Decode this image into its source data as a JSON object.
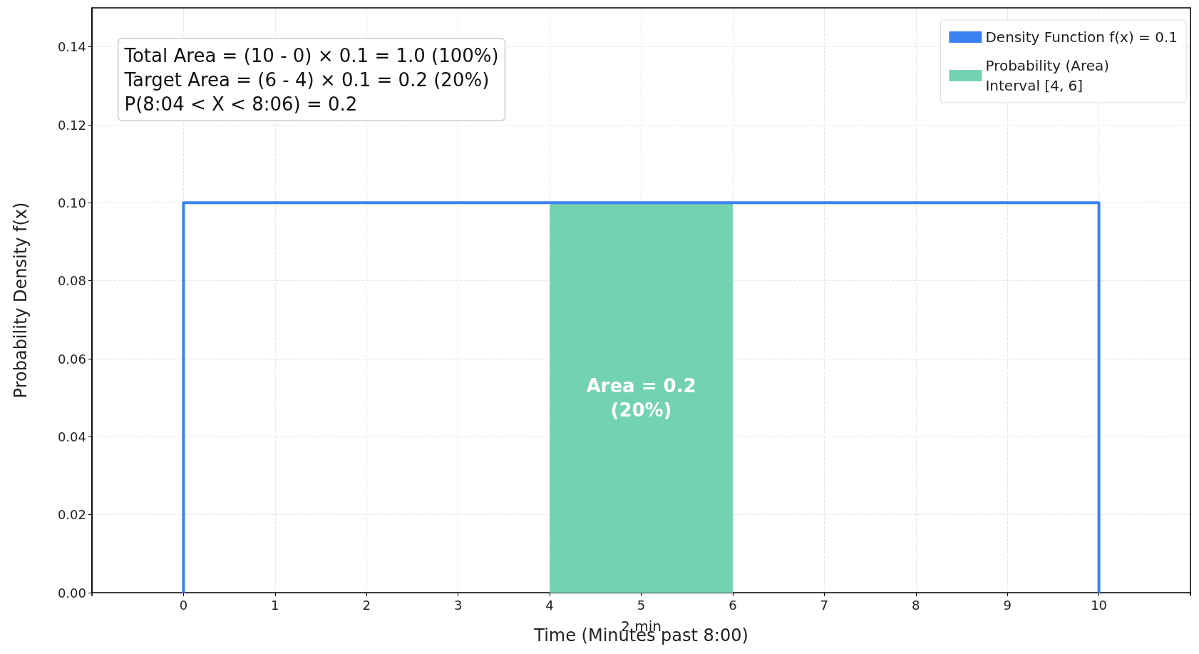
{
  "chart_data": {
    "type": "line",
    "xlabel": "Time (Minutes past 8:00)",
    "ylabel": "Probability Density f(x)",
    "xlim": [
      -1,
      11
    ],
    "xticks": [
      0,
      1,
      2,
      3,
      4,
      5,
      6,
      7,
      8,
      9,
      10
    ],
    "ylim": [
      0,
      0.15
    ],
    "yticks": [
      {
        "value": 0,
        "label": "0.00"
      },
      {
        "value": 0.02,
        "label": "0.02"
      },
      {
        "value": 0.04,
        "label": "0.04"
      },
      {
        "value": 0.06,
        "label": "0.06"
      },
      {
        "value": 0.08,
        "label": "0.08"
      },
      {
        "value": 0.1,
        "label": "0.10"
      },
      {
        "value": 0.12,
        "label": "0.12"
      },
      {
        "value": 0.14,
        "label": "0.14"
      }
    ],
    "series": [
      {
        "name": "Density Function f(x) = 0.1",
        "color": "#3b82f0",
        "x": [
          0,
          0,
          10,
          10
        ],
        "values": [
          0,
          0.1,
          0.1,
          0
        ]
      },
      {
        "type": "area",
        "name": "Probability (Area)\nInterval [4, 6]",
        "color": "#73d3b0",
        "x": [
          4,
          6
        ],
        "values": [
          0.1,
          0.1
        ]
      }
    ],
    "annotations": [
      "Total Area = (10 - 0) × 0.1 = 1.0 (100%)\nTarget Area = (6 - 4) × 0.1 = 0.2 (20%)\nP(8:04 < X < 8:06) = 0.2",
      "Area = 0.2\n(20%)",
      "2 min"
    ],
    "grid": true,
    "legend": "top right",
    "marker": "none",
    "line_style": "solid"
  }
}
